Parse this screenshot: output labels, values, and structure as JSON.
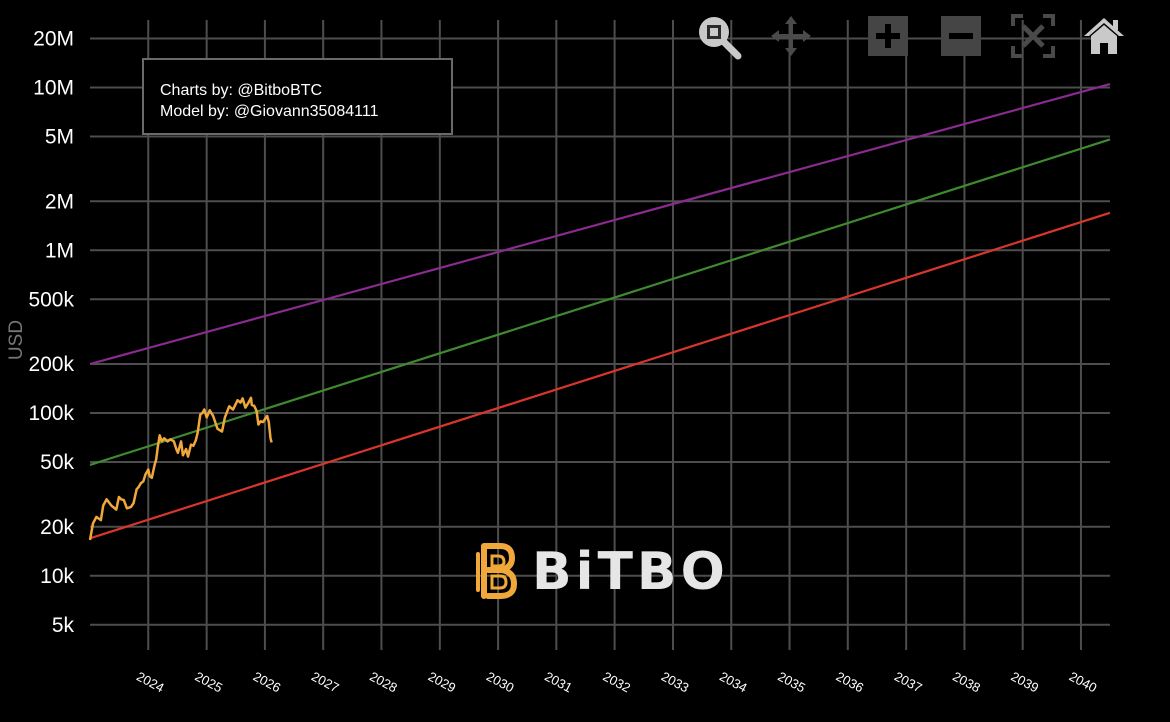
{
  "credits": {
    "line1": "Charts by: @BitboBTC",
    "line2": "Model by: @Giovann35084111"
  },
  "logo": {
    "text": "BiTBO",
    "color": "#f0a83a"
  },
  "modebar": [
    {
      "name": "zoom-icon"
    },
    {
      "name": "pan-icon"
    },
    {
      "name": "zoom-in-icon"
    },
    {
      "name": "zoom-out-icon"
    },
    {
      "name": "autoscale-icon"
    },
    {
      "name": "reset-axes-home-icon"
    }
  ],
  "chart_data": {
    "type": "line",
    "ylabel": "USD",
    "yscale": "log",
    "ylim": [
      3500,
      26000000
    ],
    "xlim": [
      "2023-01-01",
      "2040-07-01"
    ],
    "grid": true,
    "ytick_labels": [
      {
        "value": 5000,
        "label": "5k"
      },
      {
        "value": 10000,
        "label": "10k"
      },
      {
        "value": 20000,
        "label": "20k"
      },
      {
        "value": 50000,
        "label": "50k"
      },
      {
        "value": 100000,
        "label": "100k"
      },
      {
        "value": 200000,
        "label": "200k"
      },
      {
        "value": 500000,
        "label": "500k"
      },
      {
        "value": 1000000,
        "label": "1M"
      },
      {
        "value": 2000000,
        "label": "2M"
      },
      {
        "value": 5000000,
        "label": "5M"
      },
      {
        "value": 10000000,
        "label": "10M"
      },
      {
        "value": 20000000,
        "label": "20M"
      }
    ],
    "xtick_labels": [
      "2024",
      "2025",
      "2026",
      "2027",
      "2028",
      "2029",
      "2030",
      "2031",
      "2032",
      "2033",
      "2034",
      "2035",
      "2036",
      "2037",
      "2038",
      "2039",
      "2040"
    ],
    "series": [
      {
        "color": "#8b2a8f",
        "x": [
          "2023-01-01",
          "2040-07-01"
        ],
        "y": [
          200000,
          10500000
        ]
      },
      {
        "color": "#3e8a2e",
        "x": [
          "2023-01-01",
          "2040-07-01"
        ],
        "y": [
          48000,
          4800000
        ]
      },
      {
        "color": "#d9362b",
        "x": [
          "2023-01-01",
          "2040-07-01"
        ],
        "y": [
          17000,
          1700000
        ]
      },
      {
        "color": "#f0a83a",
        "x": [
          "2023-01-01",
          "2023-01-20",
          "2023-02-10",
          "2023-03-10",
          "2023-03-25",
          "2023-04-15",
          "2023-05-15",
          "2023-06-15",
          "2023-07-01",
          "2023-07-15",
          "2023-08-01",
          "2023-08-20",
          "2023-09-15",
          "2023-10-01",
          "2023-10-20",
          "2023-11-01",
          "2023-11-15",
          "2023-12-01",
          "2023-12-15",
          "2024-01-01",
          "2024-01-10",
          "2024-01-23",
          "2024-02-10",
          "2024-02-20",
          "2024-03-01",
          "2024-03-13",
          "2024-03-25",
          "2024-04-10",
          "2024-05-01",
          "2024-05-20",
          "2024-06-10",
          "2024-06-25",
          "2024-07-05",
          "2024-07-25",
          "2024-08-05",
          "2024-08-25",
          "2024-09-06",
          "2024-09-25",
          "2024-10-10",
          "2024-10-25",
          "2024-11-06",
          "2024-11-22",
          "2024-12-05",
          "2024-12-17",
          "2025-01-01",
          "2025-01-20",
          "2025-02-10",
          "2025-03-10",
          "2025-04-07",
          "2025-04-25",
          "2025-05-22",
          "2025-06-15",
          "2025-07-14",
          "2025-08-01",
          "2025-08-14",
          "2025-09-01",
          "2025-09-20",
          "2025-10-06",
          "2025-10-11",
          "2025-10-25",
          "2025-11-10",
          "2025-11-21",
          "2025-12-05",
          "2025-12-20",
          "2026-01-05",
          "2026-01-15",
          "2026-01-25",
          "2026-02-05",
          "2026-02-12"
        ],
        "y": [
          16600,
          21000,
          23000,
          22000,
          27000,
          29500,
          27000,
          25500,
          30500,
          29500,
          29200,
          26000,
          26500,
          28000,
          34000,
          35000,
          37000,
          38000,
          42000,
          45000,
          41000,
          40000,
          48000,
          52000,
          62000,
          73000,
          67000,
          70000,
          67000,
          69000,
          67000,
          60000,
          57000,
          67000,
          55000,
          60000,
          54000,
          64000,
          63000,
          68000,
          76000,
          98000,
          100000,
          105000,
          94000,
          104000,
          96000,
          80000,
          77000,
          94000,
          110000,
          105000,
          120000,
          116000,
          123000,
          108000,
          116000,
          124000,
          112000,
          111000,
          103000,
          85000,
          89000,
          88000,
          93000,
          96000,
          88000,
          70000,
          66000
        ]
      }
    ]
  }
}
